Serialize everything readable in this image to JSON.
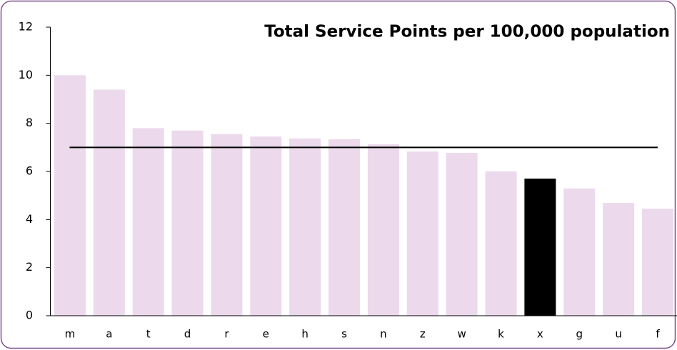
{
  "chart_data": {
    "type": "bar",
    "title": "Total Service Points per 100,000 population",
    "categories": [
      "m",
      "a",
      "t",
      "d",
      "r",
      "e",
      "h",
      "s",
      "n",
      "z",
      "w",
      "k",
      "x",
      "g",
      "u",
      "f"
    ],
    "values": [
      10.0,
      9.4,
      7.8,
      7.7,
      7.55,
      7.45,
      7.37,
      7.34,
      7.13,
      6.83,
      6.77,
      6.0,
      5.7,
      5.29,
      4.69,
      4.45
    ],
    "colors": [
      "#ecd9ec",
      "#ecd9ec",
      "#ecd9ec",
      "#ecd9ec",
      "#ecd9ec",
      "#ecd9ec",
      "#ecd9ec",
      "#ecd9ec",
      "#ecd9ec",
      "#ecd9ec",
      "#ecd9ec",
      "#ecd9ec",
      "#000000",
      "#ecd9ec",
      "#ecd9ec",
      "#ecd9ec"
    ],
    "reference_value": 7.0,
    "reference_color": "#000000",
    "ylim": [
      0,
      12
    ],
    "yticks": [
      0,
      2,
      4,
      6,
      8,
      10,
      12
    ],
    "grid": false
  }
}
